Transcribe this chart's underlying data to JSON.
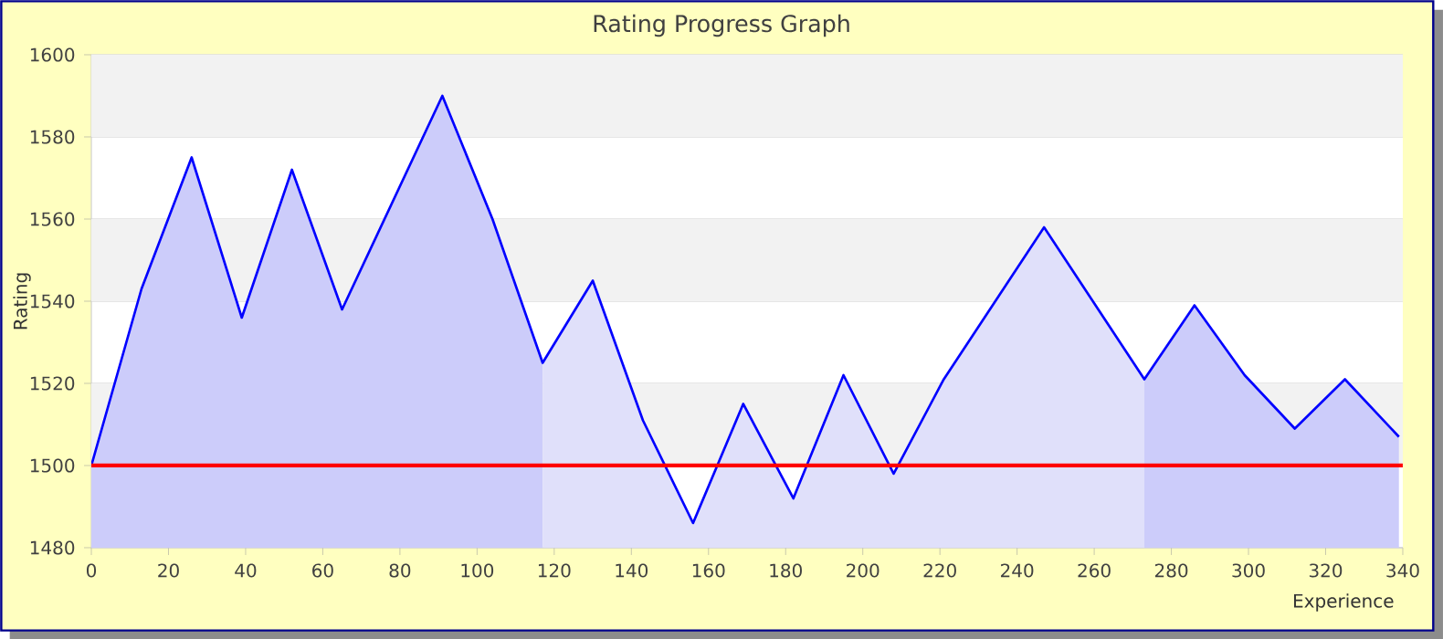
{
  "chart_data": {
    "type": "area",
    "title": "Rating Progress Graph",
    "xlabel": "Experience",
    "ylabel": "Rating",
    "series": [
      {
        "color": "#ccccfa",
        "x": [
          0,
          13,
          26,
          39,
          52,
          65,
          91,
          104,
          117
        ],
        "values": [
          1500,
          1543,
          1575,
          1536,
          1572,
          1538,
          1590,
          1560,
          1525
        ]
      },
      {
        "color": "#e0e0fa",
        "x": [
          117,
          130,
          143,
          156,
          169,
          182,
          195,
          208,
          221,
          247,
          273
        ],
        "values": [
          1525,
          1545,
          1511,
          1486,
          1515,
          1492,
          1522,
          1498,
          1521,
          1558,
          1521
        ]
      },
      {
        "color": "#ccccfa",
        "x": [
          273,
          286,
          299,
          312,
          325,
          339
        ],
        "values": [
          1521,
          1539,
          1522,
          1509,
          1521,
          1507
        ]
      },
      {
        "type": "line",
        "color": "#0000ff",
        "x": [
          0,
          13,
          26,
          39,
          52,
          65,
          91,
          104,
          117,
          130,
          143,
          156,
          169,
          182,
          195,
          208,
          221,
          247,
          273,
          286,
          299,
          312,
          325,
          339
        ],
        "values": [
          1500,
          1543,
          1575,
          1536,
          1572,
          1538,
          1590,
          1560,
          1525,
          1545,
          1511,
          1486,
          1515,
          1492,
          1522,
          1498,
          1521,
          1558,
          1521,
          1539,
          1522,
          1509,
          1521,
          1507
        ]
      }
    ],
    "xlim": [
      0,
      340
    ],
    "xticks": [
      0,
      20,
      40,
      60,
      80,
      100,
      120,
      140,
      160,
      180,
      200,
      220,
      240,
      260,
      280,
      300,
      320,
      340
    ],
    "ylim": [
      1480,
      1600
    ],
    "yticks": [
      1480,
      1500,
      1520,
      1540,
      1560,
      1580,
      1600
    ],
    "ref_lines": [
      {
        "axis": "y",
        "value": 1500,
        "color": "#ff0000"
      }
    ],
    "grid": "y",
    "marker": "none",
    "line_style": "solid"
  }
}
